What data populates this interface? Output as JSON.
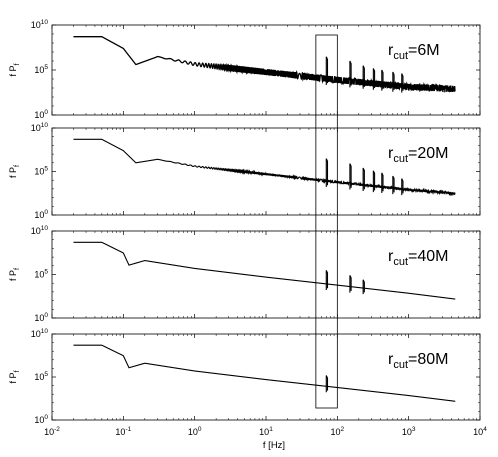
{
  "chart_data": {
    "type": "line",
    "layout": "4 vertically stacked panels, shared x axis",
    "x_scale": "log",
    "y_scale": "log",
    "xlim": [
      0.01,
      10000
    ],
    "ylim": [
      1,
      10000000000
    ],
    "x_ticks": [
      {
        "base": "10",
        "exp": "-2"
      },
      {
        "base": "10",
        "exp": "-1"
      },
      {
        "base": "10",
        "exp": "0"
      },
      {
        "base": "10",
        "exp": "1"
      },
      {
        "base": "10",
        "exp": "2"
      },
      {
        "base": "10",
        "exp": "3"
      },
      {
        "base": "10",
        "exp": "4"
      }
    ],
    "y_ticks": [
      {
        "base": "10",
        "exp": "0"
      },
      {
        "base": "10",
        "exp": "5"
      },
      {
        "base": "10",
        "exp": "10"
      }
    ],
    "xlabel": "f [Hz]",
    "ylabel": {
      "main": "f P",
      "sub": "f"
    },
    "highlight_box_x": [
      50,
      100
    ],
    "grid": false,
    "panels": [
      {
        "annotation": {
          "main": "r",
          "sub": "cut",
          "value": "=6M"
        },
        "curve": {
          "x": [
            0.02,
            0.05,
            0.1,
            0.15,
            0.3,
            1,
            10,
            100,
            1000,
            4500
          ],
          "y": [
            500000000.0,
            500000000.0,
            25000000.0,
            400000.0,
            3000000.0,
            450000.0,
            60000.0,
            8000.0,
            1300.0,
            800.0
          ]
        },
        "oscillation_depth_decades": 0.7,
        "spike_freqs": [
          70,
          150,
          230,
          320,
          420,
          600,
          800
        ],
        "spike_peaks": [
          3000000.0,
          1000000.0,
          300000.0,
          150000.0,
          100000.0,
          60000.0,
          40000.0
        ]
      },
      {
        "annotation": {
          "main": "r",
          "sub": "cut",
          "value": "=20M"
        },
        "curve": {
          "x": [
            0.02,
            0.05,
            0.1,
            0.15,
            0.3,
            1,
            10,
            100,
            1000,
            4500
          ],
          "y": [
            500000000.0,
            500000000.0,
            25000000.0,
            1000000.0,
            2500000.0,
            400000.0,
            50000.0,
            6000.0,
            800.0,
            300.0
          ]
        },
        "oscillation_depth_decades": 0.25,
        "spike_freqs": [
          70,
          150,
          230,
          320,
          420,
          600,
          800
        ],
        "spike_peaks": [
          3000000.0,
          800000.0,
          250000.0,
          120000.0,
          70000.0,
          30000.0,
          15000.0
        ]
      },
      {
        "annotation": {
          "main": "r",
          "sub": "cut",
          "value": "=40M"
        },
        "curve": {
          "x": [
            0.02,
            0.05,
            0.1,
            0.12,
            0.2,
            1,
            10,
            100,
            1000,
            4500
          ],
          "y": [
            500000000.0,
            500000000.0,
            30000000.0,
            1200000.0,
            4000000.0,
            500000.0,
            50000.0,
            6000.0,
            700.0,
            150.0
          ]
        },
        "oscillation_depth_decades": 0.0,
        "spike_freqs": [
          70,
          150,
          230
        ],
        "spike_peaks": [
          300000.0,
          80000.0,
          25000.0
        ]
      },
      {
        "annotation": {
          "main": "r",
          "sub": "cut",
          "value": "=80M"
        },
        "curve": {
          "x": [
            0.02,
            0.05,
            0.1,
            0.12,
            0.2,
            1,
            10,
            100,
            1000,
            4500
          ],
          "y": [
            500000000.0,
            500000000.0,
            30000000.0,
            1200000.0,
            4000000.0,
            500000.0,
            50000.0,
            6000.0,
            700.0,
            150.0
          ]
        },
        "oscillation_depth_decades": 0.0,
        "spike_freqs": [
          70
        ],
        "spike_peaks": [
          150000.0
        ]
      }
    ]
  }
}
